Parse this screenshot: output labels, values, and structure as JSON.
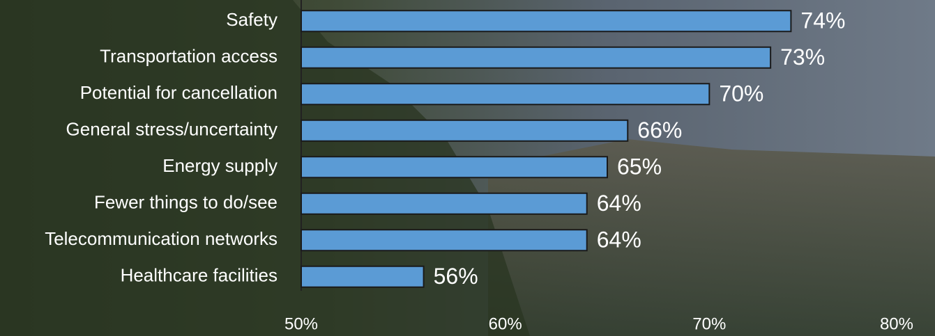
{
  "chart_data": {
    "type": "bar",
    "orientation": "horizontal",
    "categories": [
      "Safety",
      "Transportation access",
      "Potential for cancellation",
      "General stress/uncertainty",
      "Energy supply",
      "Fewer things to do/see",
      "Telecommunication networks",
      "Healthcare facilities"
    ],
    "values": [
      74,
      73,
      70,
      66,
      65,
      64,
      64,
      56
    ],
    "value_labels": [
      "74%",
      "73%",
      "70%",
      "66%",
      "65%",
      "64%",
      "64%",
      "56%"
    ],
    "color": "#5b9bd5",
    "xlim": [
      50,
      80
    ],
    "xticks": [
      {
        "value": 50,
        "label": "50%"
      },
      {
        "value": 60,
        "label": "60%"
      },
      {
        "value": 70,
        "label": "70%"
      },
      {
        "value": 80,
        "label": "80%"
      }
    ]
  }
}
